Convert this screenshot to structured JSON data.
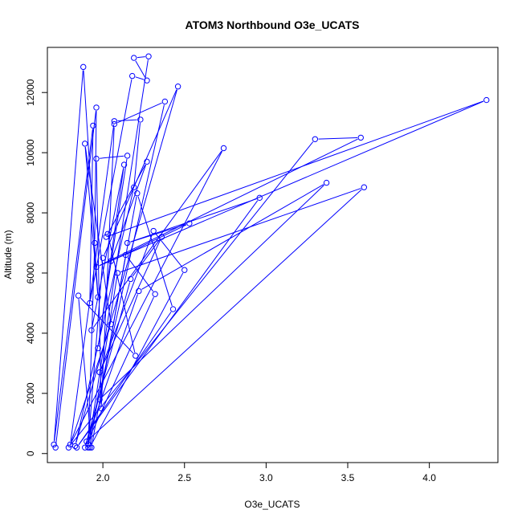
{
  "chart_data": {
    "type": "line",
    "title": "ATOM3 Northbound O3e_UCATS",
    "xlabel": "O3e_UCATS",
    "ylabel": "Altitude (m)",
    "xlim": [
      1.66,
      4.42
    ],
    "ylim": [
      -300,
      13500
    ],
    "xticks": [
      2.0,
      2.5,
      3.0,
      3.5,
      4.0
    ],
    "xtick_labels": [
      "2.0",
      "2.5",
      "3.0",
      "3.5",
      "4.0"
    ],
    "yticks": [
      0,
      2000,
      4000,
      6000,
      8000,
      10000,
      12000
    ],
    "ytick_labels": [
      "0",
      "2000",
      "4000",
      "6000",
      "8000",
      "10000",
      "12000"
    ],
    "grid": false,
    "legend": "none",
    "series_color": "#0000ff",
    "marker": "open-circle",
    "series": [
      {
        "points": [
          [
            1.71,
            200
          ],
          [
            1.96,
            11500
          ],
          [
            1.95,
            7000
          ],
          [
            1.91,
            200
          ],
          [
            2.28,
            13200
          ],
          [
            2.19,
            13150
          ],
          [
            2.27,
            12400
          ],
          [
            2.18,
            12550
          ],
          [
            1.92,
            5000
          ],
          [
            1.94,
            10900
          ],
          [
            1.7,
            300
          ],
          [
            1.88,
            12850
          ],
          [
            1.97,
            5200
          ],
          [
            1.89,
            10300
          ],
          [
            2.05,
            4300
          ],
          [
            1.8,
            300
          ],
          [
            2.07,
            11050
          ],
          [
            2.23,
            11100
          ],
          [
            2.19,
            8850
          ],
          [
            1.83,
            250
          ],
          [
            2.46,
            12200
          ],
          [
            2.0,
            6500
          ],
          [
            1.91,
            300
          ],
          [
            2.38,
            11700
          ],
          [
            2.07,
            10950
          ],
          [
            1.99,
            1500
          ],
          [
            1.96,
            9800
          ],
          [
            2.15,
            9900
          ],
          [
            1.97,
            3500
          ],
          [
            2.13,
            9600
          ],
          [
            1.93,
            4100
          ],
          [
            2.74,
            10150
          ],
          [
            1.79,
            200
          ],
          [
            3.3,
            10450
          ],
          [
            3.58,
            10500
          ],
          [
            1.96,
            6200
          ],
          [
            4.35,
            11750
          ],
          [
            2.02,
            7200
          ],
          [
            2.27,
            9700
          ],
          [
            2.05,
            6400
          ],
          [
            2.53,
            7650
          ],
          [
            2.15,
            7000
          ],
          [
            2.96,
            8500
          ],
          [
            1.84,
            200
          ],
          [
            2.43,
            4800
          ],
          [
            2.21,
            8650
          ],
          [
            1.98,
            1800
          ],
          [
            3.37,
            9000
          ],
          [
            2.22,
            5400
          ],
          [
            1.9,
            400
          ],
          [
            3.6,
            8850
          ],
          [
            2.09,
            6000
          ],
          [
            1.92,
            200
          ],
          [
            2.5,
            6100
          ],
          [
            2.31,
            7400
          ],
          [
            1.98,
            2700
          ],
          [
            2.36,
            7200
          ],
          [
            2.17,
            5800
          ],
          [
            1.89,
            200
          ],
          [
            2.32,
            5300
          ],
          [
            2.14,
            6600
          ],
          [
            1.93,
            200
          ],
          [
            1.85,
            5250
          ],
          [
            2.2,
            3250
          ],
          [
            2.03,
            7300
          ]
        ]
      }
    ]
  }
}
